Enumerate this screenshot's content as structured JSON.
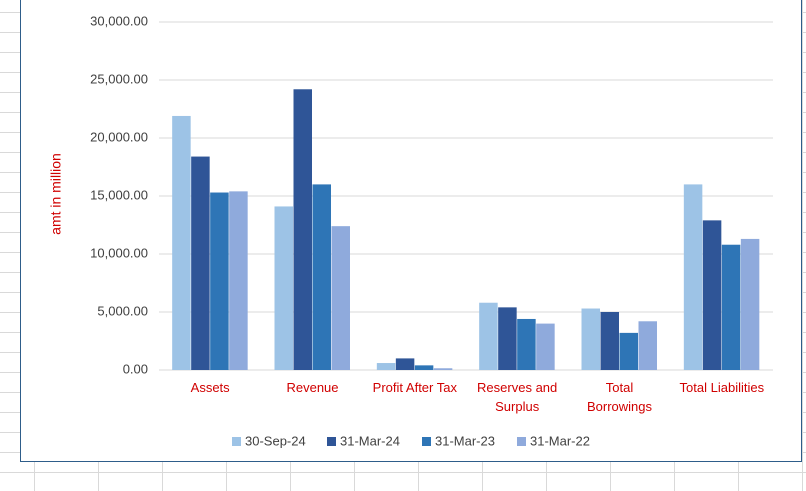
{
  "chart_data": {
    "type": "bar",
    "title": "",
    "xlabel": "",
    "ylabel": "amt in million",
    "ylim": [
      0,
      30000
    ],
    "yticks": [
      "0.00",
      "5,000.00",
      "10,000.00",
      "15,000.00",
      "20,000.00",
      "25,000.00",
      "30,000.00"
    ],
    "categories": [
      [
        "Assets"
      ],
      [
        "Revenue"
      ],
      [
        "Profit After Tax"
      ],
      [
        "Reserves and",
        "Surplus"
      ],
      [
        "Total",
        "Borrowings"
      ],
      [
        "Total Liabilities"
      ]
    ],
    "series": [
      {
        "name": "30-Sep-24",
        "color": "#9dc3e6",
        "values": [
          21900,
          14100,
          600,
          5800,
          5300,
          16000
        ]
      },
      {
        "name": "31-Mar-24",
        "color": "#2f5597",
        "values": [
          18400,
          24200,
          1000,
          5400,
          5000,
          12900
        ]
      },
      {
        "name": "31-Mar-23",
        "color": "#2e75b6",
        "values": [
          15300,
          16000,
          400,
          4400,
          3200,
          10800
        ]
      },
      {
        "name": "31-Mar-22",
        "color": "#8faadc",
        "values": [
          15400,
          12400,
          150,
          4000,
          4200,
          11300
        ]
      }
    ],
    "grid": true,
    "legend_position": "bottom"
  }
}
